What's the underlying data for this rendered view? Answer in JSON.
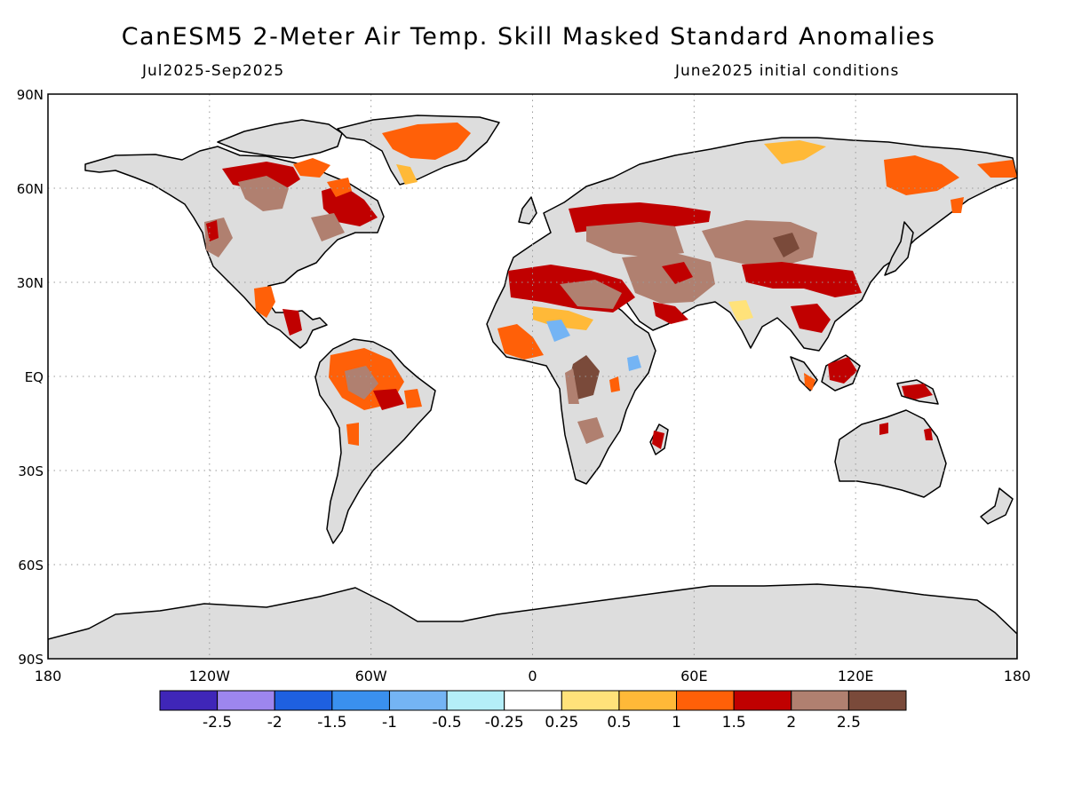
{
  "title": "CanESM5 2-Meter Air Temp. Skill Masked Standard Anomalies",
  "period": "Jul2025-Sep2025",
  "initial_conditions": "June2025 initial conditions",
  "map": {
    "projection": "equirectangular",
    "lon_range": [
      -180,
      180
    ],
    "lat_range": [
      -90,
      90
    ],
    "grid": "dotted",
    "land_color": "#dddddd",
    "ocean_color": "#ffffff",
    "lat_ticks": [
      "90N",
      "60N",
      "30N",
      "EQ",
      "30S",
      "60S",
      "90S"
    ],
    "lon_ticks": [
      "180",
      "120W",
      "60W",
      "0",
      "60E",
      "120E",
      "180"
    ]
  },
  "colorbar": {
    "colors": [
      "#3f26b8",
      "#9d86ee",
      "#1e60e0",
      "#3a90ee",
      "#74b4f4",
      "#b4eef8",
      "#ffffff",
      "#ffe27a",
      "#ffb938",
      "#ff6008",
      "#c00000",
      "#b08070",
      "#7a4a3a"
    ],
    "labels": [
      "-2.5",
      "-2",
      "-1.5",
      "-1",
      "-0.5",
      "-0.25",
      "0.25",
      "0.5",
      "1",
      "1.5",
      "2",
      "2.5"
    ]
  },
  "anomaly_regions": [
    {
      "name": "Canadian Arctic",
      "level": 1.5
    },
    {
      "name": "Greenland",
      "level": 1
    },
    {
      "name": "Hudson Bay",
      "level": 2
    },
    {
      "name": "Quebec",
      "level": 2
    },
    {
      "name": "Western USA",
      "level": 2.5
    },
    {
      "name": "Mexico",
      "level": 1.5
    },
    {
      "name": "Amazon",
      "level": 2.5
    },
    {
      "name": "Northern South America",
      "level": 1.5
    },
    {
      "name": "Sahara",
      "level": 2
    },
    {
      "name": "Sahel",
      "level": 1
    },
    {
      "name": "Lake Chad",
      "level": -1
    },
    {
      "name": "Congo Basin",
      "level": 2.5
    },
    {
      "name": "East Africa",
      "level": -1
    },
    {
      "name": "Eastern Europe",
      "level": 2
    },
    {
      "name": "Middle East",
      "level": 2.5
    },
    {
      "name": "Arabian Peninsula",
      "level": 2
    },
    {
      "name": "Central Asia",
      "level": 2.5
    },
    {
      "name": "Tibet",
      "level": 2
    },
    {
      "name": "Northern Siberia",
      "level": 1
    },
    {
      "name": "Eastern Siberia",
      "level": 1.5
    },
    {
      "name": "Southeast Asia",
      "level": 2
    },
    {
      "name": "Borneo",
      "level": 2
    },
    {
      "name": "New Guinea",
      "level": 2
    },
    {
      "name": "Madagascar",
      "level": 2
    }
  ]
}
